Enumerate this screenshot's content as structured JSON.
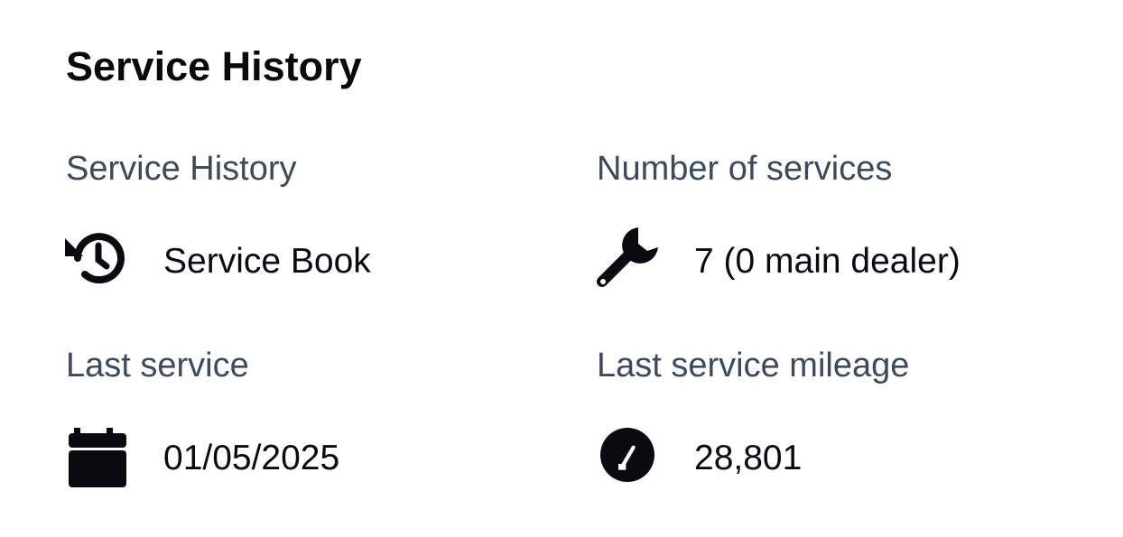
{
  "section": {
    "title": "Service History"
  },
  "fields": [
    {
      "label": "Service History",
      "value": "Service Book",
      "icon": "history-icon"
    },
    {
      "label": "Number of services",
      "value": "7 (0 main dealer)",
      "icon": "wrench-icon"
    },
    {
      "label": "Last service",
      "value": "01/05/2025",
      "icon": "calendar-icon"
    },
    {
      "label": "Last service mileage",
      "value": "28,801",
      "icon": "speedometer-icon"
    }
  ],
  "colors": {
    "label": "#3b4a5c",
    "text": "#0a0a10"
  }
}
